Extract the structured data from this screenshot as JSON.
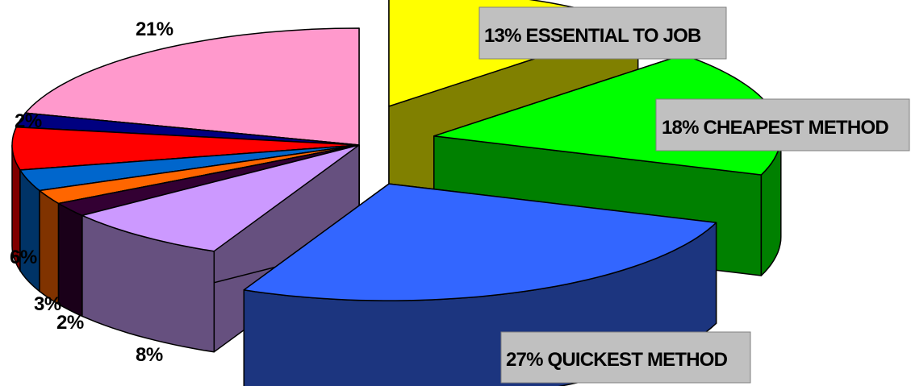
{
  "chart_data": {
    "type": "pie",
    "style": "3d-exploded",
    "slices": [
      {
        "value": 13,
        "label": "13%",
        "callout": "13% ESSENTIAL TO JOB",
        "color": "#FFFF00",
        "side": "#808000",
        "explode": 1
      },
      {
        "value": 18,
        "label": "18%",
        "callout": "18% CHEAPEST METHOD",
        "color": "#00FF00",
        "side": "#008000",
        "explode": 1
      },
      {
        "value": 27,
        "label": "27%",
        "callout": "27% QUICKEST METHOD",
        "color": "#3366FF",
        "side": "#1C357F",
        "explode": 1
      },
      {
        "value": 8,
        "label": "8%",
        "color": "#CC99FF",
        "side": "#66507F",
        "explode": 0
      },
      {
        "value": 2,
        "label": "2%",
        "color": "#330033",
        "side": "#1A0019",
        "explode": 0
      },
      {
        "value": 2,
        "label": "",
        "color": "#FF6600",
        "side": "#803300",
        "explode": 0
      },
      {
        "value": 3,
        "label": "3%",
        "color": "#0066CC",
        "side": "#003366",
        "explode": 0
      },
      {
        "value": 6,
        "label": "6%",
        "color": "#FF0000",
        "side": "#800000",
        "explode": 0
      },
      {
        "value": 2,
        "label": "2%",
        "color": "#000080",
        "side": "#000040",
        "explode": 0
      },
      {
        "value": 21,
        "label": "21%",
        "color": "#FF99CC",
        "side": "#804D66",
        "explode": 0
      }
    ],
    "callout_box_color": "#C0C0C0"
  }
}
